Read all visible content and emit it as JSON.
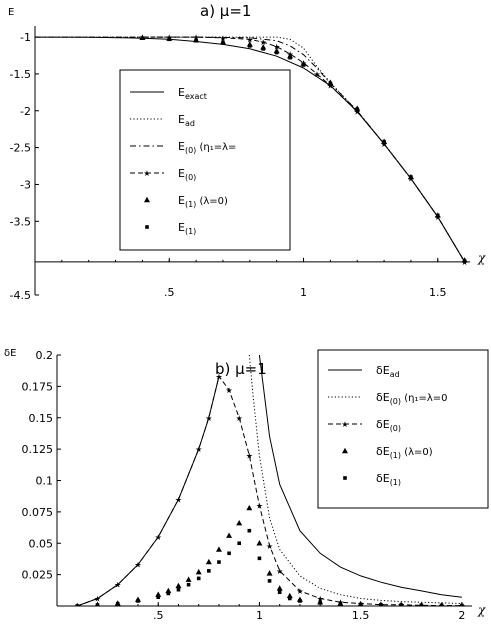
{
  "chart_data": [
    {
      "type": "line",
      "panel_label": "a)",
      "title": "μ=1",
      "ylabel": "E",
      "xlabel": "χ",
      "xlim": [
        0.0,
        1.62
      ],
      "ylim": [
        -4.5,
        -0.85
      ],
      "x_axis_at": -4.05,
      "y_axis_at": 0.0,
      "xticks": [
        0.5,
        1.0,
        1.5
      ],
      "xtick_labels": [
        ".5",
        "1",
        "1.5"
      ],
      "yticks": [
        -1,
        -1.5,
        -2,
        -2.5,
        -3,
        -3.5,
        -4.5
      ],
      "ytick_labels": [
        "-1",
        "-1.5",
        "-2",
        "-2.5",
        "-3",
        "-3.5",
        "-4.5"
      ],
      "legend": {
        "position": "center-left",
        "entries": [
          {
            "style": "solid",
            "label": "E",
            "sub": "exact",
            "extra": ""
          },
          {
            "style": "dotted",
            "label": "E",
            "sub": "ad",
            "extra": ""
          },
          {
            "style": "dashdot",
            "label": "E",
            "sub": "(0)",
            "extra": "(η₁=λ="
          },
          {
            "style": "dash-star",
            "label": "E",
            "sub": "(0)",
            "extra": ""
          },
          {
            "style": "triangle",
            "label": "E",
            "sub": "(1)",
            "extra": "(λ=0)"
          },
          {
            "style": "square",
            "label": "E",
            "sub": "(1)",
            "extra": ""
          }
        ]
      },
      "series": [
        {
          "style": "solid",
          "x": [
            0,
            0.2,
            0.4,
            0.5,
            0.6,
            0.7,
            0.8,
            0.9,
            1.0,
            1.1,
            1.2,
            1.3,
            1.4,
            1.5,
            1.6
          ],
          "y": [
            -1.0,
            -1.002,
            -1.015,
            -1.03,
            -1.06,
            -1.1,
            -1.16,
            -1.26,
            -1.42,
            -1.66,
            -2.01,
            -2.45,
            -2.92,
            -3.44,
            -4.05
          ]
        },
        {
          "style": "dotted",
          "x": [
            0,
            0.3,
            0.6,
            0.8,
            0.9,
            0.95,
            1.0,
            1.05,
            1.1,
            1.2,
            1.3,
            1.4,
            1.5,
            1.6
          ],
          "y": [
            -1.0,
            -1.0,
            -1.0,
            -1.0,
            -1.0,
            -1.03,
            -1.15,
            -1.4,
            -1.62,
            -2.0,
            -2.45,
            -2.92,
            -3.44,
            -4.05
          ]
        },
        {
          "style": "dashdot",
          "x": [
            0,
            0.3,
            0.6,
            0.8,
            0.9,
            0.95,
            1.0,
            1.05,
            1.1,
            1.2,
            1.3,
            1.4,
            1.5,
            1.6
          ],
          "y": [
            -1.0,
            -1.0,
            -1.0,
            -1.01,
            -1.05,
            -1.12,
            -1.24,
            -1.42,
            -1.63,
            -2.0,
            -2.45,
            -2.92,
            -3.44,
            -4.05
          ]
        },
        {
          "style": "dash-star",
          "x": [
            0.4,
            0.5,
            0.6,
            0.7,
            0.8,
            0.85,
            0.9,
            0.95,
            1.0,
            1.05,
            1.1,
            1.2,
            1.3,
            1.4,
            1.5,
            1.6
          ],
          "y": [
            -1.0,
            -1.0,
            -1.0,
            -1.01,
            -1.03,
            -1.07,
            -1.13,
            -1.23,
            -1.35,
            -1.5,
            -1.66,
            -2.01,
            -2.45,
            -2.92,
            -3.44,
            -4.05
          ]
        },
        {
          "style": "triangle",
          "x": [
            0.4,
            0.5,
            0.6,
            0.7,
            0.8,
            0.85,
            0.9,
            0.95,
            1.0,
            1.1,
            1.2,
            1.3,
            1.4,
            1.5,
            1.6
          ],
          "y": [
            -1.01,
            -1.02,
            -1.04,
            -1.07,
            -1.1,
            -1.14,
            -1.19,
            -1.26,
            -1.36,
            -1.62,
            -1.97,
            -2.42,
            -2.9,
            -3.42,
            -4.03
          ]
        },
        {
          "style": "square",
          "x": [
            0.4,
            0.5,
            0.6,
            0.7,
            0.8,
            0.85,
            0.9,
            0.95,
            1.0,
            1.1,
            1.2,
            1.3,
            1.4,
            1.5,
            1.6
          ],
          "y": [
            -1.015,
            -1.03,
            -1.05,
            -1.08,
            -1.12,
            -1.16,
            -1.21,
            -1.28,
            -1.38,
            -1.63,
            -1.98,
            -2.42,
            -2.9,
            -3.42,
            -4.04
          ]
        }
      ]
    },
    {
      "type": "line",
      "panel_label": "b)",
      "title": "μ=1",
      "ylabel": "δE",
      "xlabel": "χ",
      "xlim": [
        0.0,
        2.05
      ],
      "ylim": [
        0.0,
        0.2
      ],
      "xticks": [
        0.5,
        1.0,
        1.5,
        2.0
      ],
      "xtick_labels": [
        ".5",
        "1",
        "1.5",
        "2"
      ],
      "yticks": [
        0.025,
        0.05,
        0.075,
        0.1,
        0.125,
        0.15,
        0.175,
        0.2
      ],
      "ytick_labels": [
        "0.025",
        "0.05",
        "0.075",
        "0.1",
        "0.125",
        "0.15",
        "0.175",
        "0.2"
      ],
      "legend": {
        "position": "top-right",
        "entries": [
          {
            "style": "solid",
            "label": "δE",
            "sub": "ad",
            "extra": ""
          },
          {
            "style": "dotted",
            "label": "δE",
            "sub": "(0)",
            "extra": "(η₁=λ=0"
          },
          {
            "style": "dash-star",
            "label": "δE",
            "sub": "(0)",
            "extra": ""
          },
          {
            "style": "triangle",
            "label": "δE",
            "sub": "(1)",
            "extra": "(λ=0)"
          },
          {
            "style": "square",
            "label": "δE",
            "sub": "(1)",
            "extra": ""
          }
        ]
      },
      "series": [
        {
          "style": "solid",
          "x": [
            0.1,
            0.2,
            0.3,
            0.4,
            0.5,
            0.6,
            0.7,
            0.75,
            0.8
          ],
          "y": [
            0.0,
            0.006,
            0.017,
            0.033,
            0.055,
            0.085,
            0.125,
            0.15,
            0.183
          ]
        },
        {
          "style": "solid",
          "x": [
            1.0,
            1.05,
            1.1,
            1.2,
            1.3,
            1.4,
            1.5,
            1.6,
            1.7,
            1.8,
            1.9,
            2.0
          ],
          "y": [
            0.2,
            0.135,
            0.097,
            0.06,
            0.042,
            0.031,
            0.024,
            0.019,
            0.015,
            0.012,
            0.009,
            0.007
          ]
        },
        {
          "style": "dotted",
          "x": [
            0.95,
            0.97,
            1.0,
            1.05,
            1.1,
            1.2,
            1.3,
            1.4,
            1.5,
            1.6,
            1.7,
            1.8,
            1.9,
            2.0
          ],
          "y": [
            0.2,
            0.165,
            0.12,
            0.07,
            0.045,
            0.024,
            0.014,
            0.009,
            0.006,
            0.0045,
            0.0035,
            0.003,
            0.0025,
            0.002
          ]
        },
        {
          "style": "dash-star",
          "x": [
            0.1,
            0.2,
            0.3,
            0.4,
            0.5,
            0.6,
            0.7,
            0.75,
            0.8,
            0.85,
            0.9,
            0.95,
            1.0,
            1.05,
            1.1,
            1.2,
            1.3,
            1.4,
            1.5,
            1.6,
            1.7,
            1.8,
            1.9,
            2.0
          ],
          "y": [
            0.0,
            0.006,
            0.017,
            0.033,
            0.055,
            0.085,
            0.125,
            0.15,
            0.183,
            0.172,
            0.15,
            0.12,
            0.08,
            0.048,
            0.028,
            0.012,
            0.006,
            0.003,
            0.002,
            0.001,
            0.001,
            0.0005,
            0.0004,
            0.0003
          ]
        },
        {
          "style": "triangle",
          "x": [
            0.1,
            0.2,
            0.3,
            0.4,
            0.5,
            0.55,
            0.6,
            0.65,
            0.7,
            0.75,
            0.8,
            0.85,
            0.9,
            0.95,
            1.0,
            1.05,
            1.1,
            1.15,
            1.2,
            1.3,
            1.4,
            1.5,
            1.6,
            1.7,
            1.8,
            1.9,
            2.0
          ],
          "y": [
            0.0,
            0.001,
            0.002,
            0.005,
            0.009,
            0.012,
            0.016,
            0.021,
            0.027,
            0.035,
            0.045,
            0.056,
            0.066,
            0.078,
            0.05,
            0.026,
            0.014,
            0.008,
            0.005,
            0.003,
            0.002,
            0.0015,
            0.001,
            0.0008,
            0.0006,
            0.0005,
            0.0004
          ]
        },
        {
          "style": "square",
          "x": [
            0.1,
            0.2,
            0.3,
            0.4,
            0.5,
            0.55,
            0.6,
            0.65,
            0.7,
            0.75,
            0.8,
            0.85,
            0.9,
            0.95,
            1.0,
            1.05,
            1.1,
            1.15,
            1.2,
            1.3,
            1.4,
            1.5,
            1.6,
            1.7,
            1.8,
            1.9,
            2.0
          ],
          "y": [
            0.0,
            0.0008,
            0.0018,
            0.004,
            0.007,
            0.01,
            0.013,
            0.017,
            0.022,
            0.028,
            0.035,
            0.042,
            0.05,
            0.06,
            0.038,
            0.02,
            0.011,
            0.006,
            0.004,
            0.0025,
            0.0018,
            0.0013,
            0.001,
            0.0008,
            0.0006,
            0.0005,
            0.0004
          ]
        }
      ]
    }
  ]
}
